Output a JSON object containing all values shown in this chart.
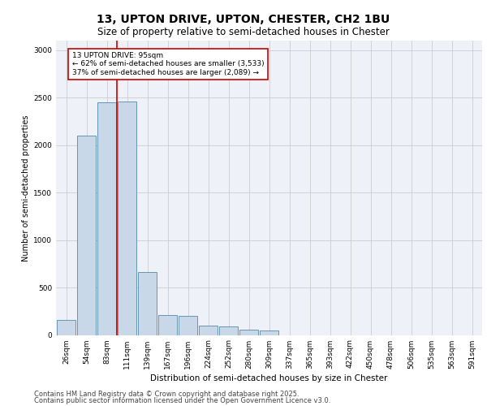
{
  "title": "13, UPTON DRIVE, UPTON, CHESTER, CH2 1BU",
  "subtitle": "Size of property relative to semi-detached houses in Chester",
  "xlabel": "Distribution of semi-detached houses by size in Chester",
  "ylabel": "Number of semi-detached properties",
  "categories": [
    "26sqm",
    "54sqm",
    "83sqm",
    "111sqm",
    "139sqm",
    "167sqm",
    "196sqm",
    "224sqm",
    "252sqm",
    "280sqm",
    "309sqm",
    "337sqm",
    "365sqm",
    "393sqm",
    "422sqm",
    "450sqm",
    "478sqm",
    "506sqm",
    "535sqm",
    "563sqm",
    "591sqm"
  ],
  "values": [
    160,
    2100,
    2450,
    2460,
    660,
    210,
    200,
    100,
    90,
    55,
    45,
    0,
    0,
    0,
    0,
    0,
    0,
    0,
    0,
    0,
    0
  ],
  "bar_color": "#c8d8e8",
  "bar_edge_color": "#5588aa",
  "red_line_color": "#cc0000",
  "annotation_text": "13 UPTON DRIVE: 95sqm\n← 62% of semi-detached houses are smaller (3,533)\n37% of semi-detached houses are larger (2,089) →",
  "annotation_box_color": "#ffffff",
  "annotation_box_edge_color": "#cc0000",
  "property_bin_index": 2,
  "ylim": [
    0,
    3100
  ],
  "yticks": [
    0,
    500,
    1000,
    1500,
    2000,
    2500,
    3000
  ],
  "grid_color": "#cccccc",
  "bg_color": "#eef2f8",
  "footer_line1": "Contains HM Land Registry data © Crown copyright and database right 2025.",
  "footer_line2": "Contains public sector information licensed under the Open Government Licence v3.0.",
  "title_fontsize": 10,
  "subtitle_fontsize": 8.5,
  "axis_label_fontsize": 7.5,
  "ylabel_fontsize": 7,
  "tick_fontsize": 6.5,
  "annotation_fontsize": 6.5,
  "footer_fontsize": 6
}
